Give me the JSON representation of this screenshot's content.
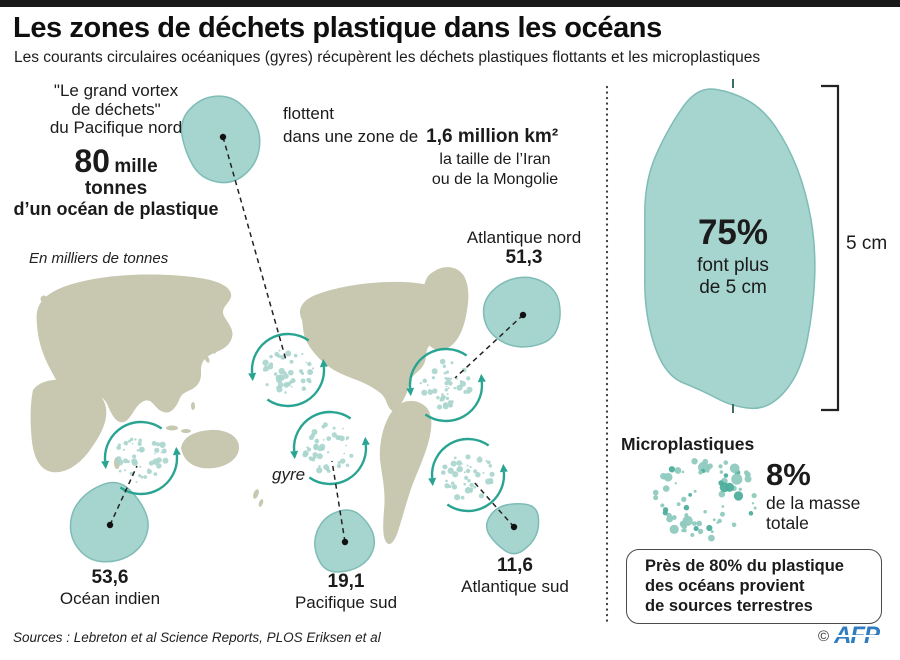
{
  "header": {
    "title": "Les zones de déchets plastique dans les océans",
    "subtitle": "Les courants circulaires océaniques (gyres) récupèrent les déchets plastiques flottants et les microplastiques"
  },
  "vortex": {
    "quote_line1": "\"Le grand vortex",
    "quote_line2": "de déchets\"",
    "quote_line3": "du Pacifique nord",
    "value": "80",
    "unit": "mille",
    "unit_line2": "tonnes",
    "desc": "d’un océan de plastique"
  },
  "area": {
    "line1": "flottent",
    "line2": "dans une zone de",
    "value": "1,6 million km²",
    "compare_line1": "la taille de l’Iran",
    "compare_line2": "ou de la Mongolie"
  },
  "map": {
    "unit_note": "En milliers de tonnes",
    "gyre_label": "gyre",
    "zones": [
      {
        "name": "Atlantique nord",
        "value": "51,3"
      },
      {
        "name": "Océan indien",
        "value": "53,6"
      },
      {
        "name": "Pacifique sud",
        "value": "19,1"
      },
      {
        "name": "Atlantique sud",
        "value": "11,6"
      }
    ]
  },
  "size_panel": {
    "pct": "75%",
    "line1": "font plus",
    "line2": "de 5 cm",
    "bracket_label": "5 cm"
  },
  "micro_panel": {
    "title": "Microplastiques",
    "pct": "8%",
    "line1": "de la masse",
    "line2": "totale"
  },
  "callout": {
    "line1": "Près de 80% du plastique",
    "line2": "des océans provient",
    "line3": "de sources terrestres"
  },
  "footer": {
    "sources": "Sources : Lebreton et al Science Reports, PLOS Eriksen et al",
    "copyright": "©",
    "brand": "AFP"
  },
  "colors": {
    "blob_fill": "#a6d4cf",
    "blob_stroke": "#7fbcb6",
    "land": "#c7c8af",
    "arrow_teal": "#2aa492",
    "afp_blue": "#2f7cc0"
  },
  "chart_data": {
    "type": "map-infographic",
    "title": "Les zones de déchets plastique dans les océans",
    "unit": "milliers de tonnes",
    "zones": [
      {
        "zone": "Pacifique nord",
        "value": 80
      },
      {
        "zone": "Atlantique nord",
        "value": 51.3
      },
      {
        "zone": "Océan indien",
        "value": 53.6
      },
      {
        "zone": "Pacifique sud",
        "value": 19.1
      },
      {
        "zone": "Atlantique sud",
        "value": 11.6
      }
    ],
    "north_pacific_area": "1,6 million km²",
    "over_5cm_share_pct": 75,
    "microplastics_mass_share_pct": 8,
    "land_origin_share_pct": 80
  }
}
